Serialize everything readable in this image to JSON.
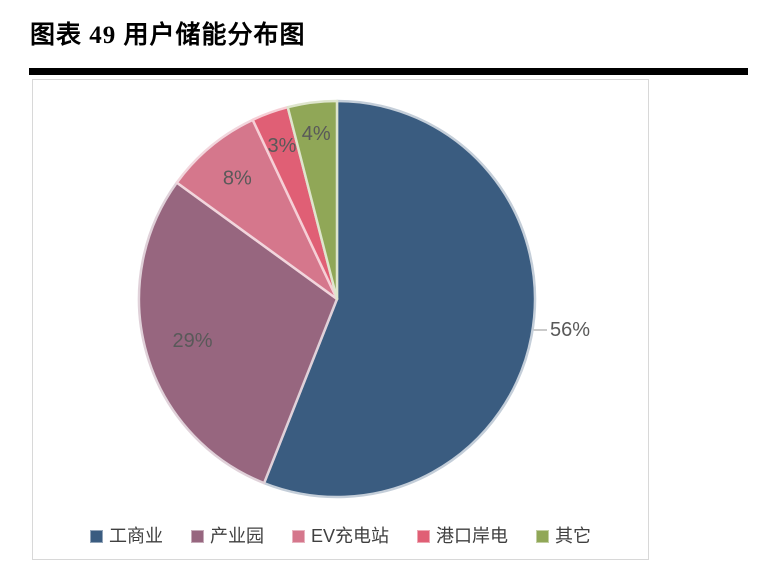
{
  "header": {
    "title": "图表 49 用户储能分布图"
  },
  "chart_data": {
    "type": "pie",
    "title": "用户储能分布图",
    "categories": [
      "工商业",
      "产业园",
      "EV充电站",
      "港口岸电",
      "其它"
    ],
    "values": [
      56,
      29,
      8,
      3,
      4
    ],
    "labels": [
      "56%",
      "29%",
      "8%",
      "3%",
      "4%"
    ],
    "colors": [
      "#3A5C80",
      "#97667F",
      "#D5778C",
      "#E05F75",
      "#90A757"
    ],
    "label_color": "#595959",
    "leader_line_color": "#A6A6A6",
    "legend": {
      "position": "bottom",
      "text_color": "#404040"
    },
    "start_angle_deg": 0,
    "direction": "clockwise"
  }
}
